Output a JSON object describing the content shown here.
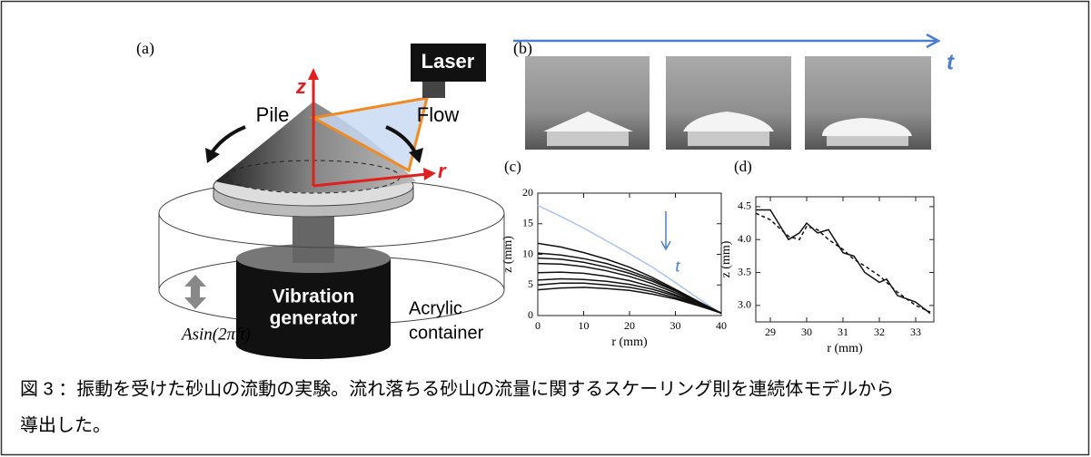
{
  "figure": {
    "a": {
      "label": "(a)",
      "laser": "Laser",
      "z": "z",
      "r": "r",
      "pile": "Pile",
      "flow": "Flow",
      "generator": [
        "Vibration",
        "generator"
      ],
      "container": [
        "Acrylic",
        "container"
      ],
      "drive": "Asin(2πft)"
    },
    "b": {
      "label": "(b)",
      "time": "t"
    }
  },
  "chart_data": [
    {
      "type": "line",
      "panel_label": "(c)",
      "x_label": "r (mm)",
      "y_label": "z (mm)",
      "annotation": "t",
      "x": [
        0,
        5,
        10,
        15,
        20,
        25,
        30,
        35,
        40
      ],
      "xlim": [
        0,
        40
      ],
      "ylim": [
        0,
        20
      ],
      "xticks": [
        0,
        10,
        20,
        30,
        40
      ],
      "yticks": [
        0,
        5,
        10,
        15,
        20
      ],
      "series": [
        {
          "color": "#a9c3ea",
          "values": [
            18,
            16.2,
            14.3,
            12.2,
            10.1,
            7.9,
            5.4,
            2.8,
            0.3
          ]
        },
        {
          "color": "#111111",
          "values": [
            11.8,
            11.2,
            10.3,
            9.2,
            7.9,
            6.2,
            4.3,
            2.3,
            0.4
          ]
        },
        {
          "color": "#111111",
          "values": [
            10.2,
            9.9,
            9.3,
            8.5,
            7.3,
            5.9,
            4.1,
            2.2,
            0.4
          ]
        },
        {
          "color": "#111111",
          "values": [
            9.4,
            9.2,
            8.7,
            7.9,
            6.9,
            5.6,
            4.0,
            2.1,
            0.4
          ]
        },
        {
          "color": "#111111",
          "values": [
            8.5,
            8.4,
            8.0,
            7.3,
            6.4,
            5.2,
            3.7,
            2.0,
            0.4
          ]
        },
        {
          "color": "#111111",
          "values": [
            7.0,
            7.1,
            6.9,
            6.4,
            5.7,
            4.7,
            3.4,
            1.9,
            0.4
          ]
        },
        {
          "color": "#111111",
          "values": [
            5.8,
            6.0,
            5.9,
            5.6,
            5.1,
            4.3,
            3.2,
            1.8,
            0.4
          ]
        },
        {
          "color": "#111111",
          "values": [
            5.0,
            5.3,
            5.3,
            5.0,
            4.6,
            3.9,
            2.9,
            1.7,
            0.4
          ]
        },
        {
          "color": "#111111",
          "values": [
            4.2,
            4.5,
            4.6,
            4.4,
            4.1,
            3.5,
            2.7,
            1.6,
            0.4
          ]
        }
      ]
    },
    {
      "type": "line",
      "panel_label": "(d)",
      "x_label": "r (mm)",
      "y_label": "z (mm)",
      "x": [
        28.6,
        29,
        29.5,
        29.8,
        30,
        30.3,
        30.6,
        31,
        31.3,
        31.6,
        32,
        32.2,
        32.5,
        33,
        33.4
      ],
      "xlim": [
        28.6,
        33.5
      ],
      "ylim": [
        2.75,
        4.65
      ],
      "xticks": [
        29,
        30,
        31,
        32,
        33
      ],
      "yticks": [
        {
          "value": 3.0,
          "label": "3.0"
        },
        3.5,
        {
          "value": 4.0,
          "label": "4.0"
        },
        4.5
      ],
      "series": [
        {
          "color": "#111111",
          "dash": false,
          "values": [
            4.45,
            4.45,
            4.0,
            4.1,
            4.25,
            4.1,
            4.15,
            3.8,
            3.75,
            3.5,
            3.35,
            3.4,
            3.15,
            3.05,
            2.88
          ]
        },
        {
          "color": "#111111",
          "dash": true,
          "values": [
            4.4,
            4.3,
            4.05,
            4.0,
            4.2,
            4.15,
            4.0,
            3.85,
            3.7,
            3.6,
            3.45,
            3.35,
            3.2,
            3.0,
            2.9
          ]
        }
      ]
    }
  ],
  "caption": [
    "図 3 ：振動を受けた砂山の流動の実験。流れ落ちる砂山の流量に関するスケーリング則を連続体モデルから",
    "導出した。"
  ]
}
